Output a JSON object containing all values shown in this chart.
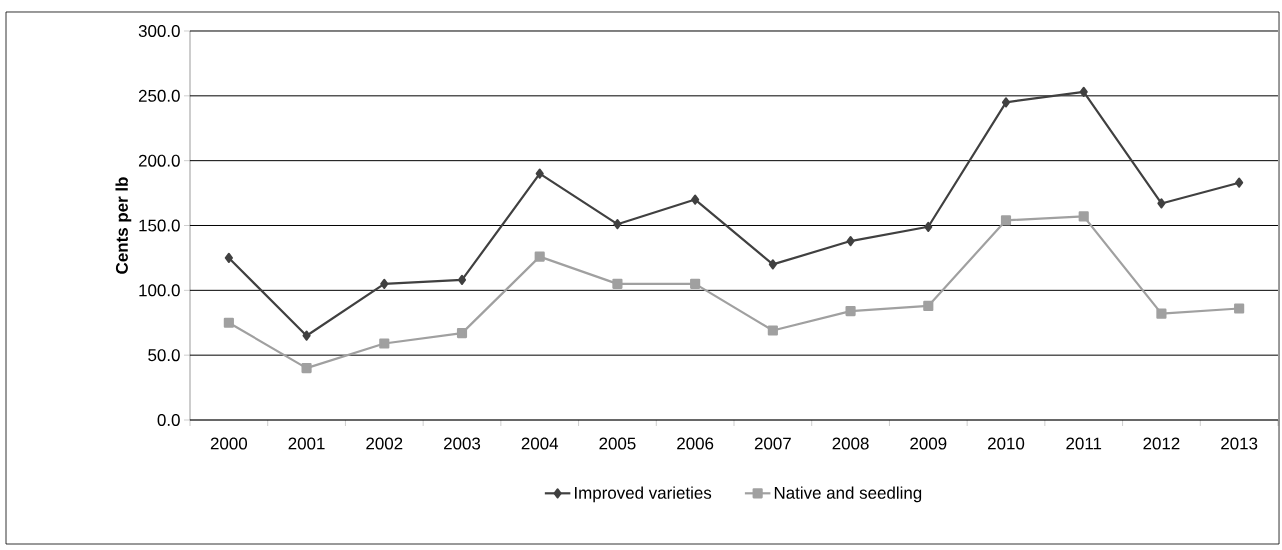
{
  "chart_data": {
    "type": "line",
    "ylabel": "Cents per lb",
    "categories": [
      "2000",
      "2001",
      "2002",
      "2003",
      "2004",
      "2005",
      "2006",
      "2007",
      "2008",
      "2009",
      "2010",
      "2011",
      "2012",
      "2013"
    ],
    "series": [
      {
        "name": "Improved varieties",
        "color": "#404040",
        "marker": "diamond",
        "values": [
          125,
          65,
          105,
          108,
          190,
          151,
          170,
          120,
          138,
          149,
          245,
          253,
          167,
          183
        ]
      },
      {
        "name": "Native and seedling",
        "color": "#a0a0a0",
        "marker": "square",
        "values": [
          75,
          40,
          59,
          67,
          126,
          105,
          105,
          69,
          84,
          88,
          154,
          157,
          82,
          86
        ]
      }
    ],
    "ylim": [
      0,
      300
    ],
    "yticks": [
      {
        "value": 0,
        "label": "0.0"
      },
      {
        "value": 50,
        "label": "50.0"
      },
      {
        "value": 100,
        "label": "100.0"
      },
      {
        "value": 150,
        "label": "150.0"
      },
      {
        "value": 200,
        "label": "200.0"
      },
      {
        "value": 250,
        "label": "250.0"
      },
      {
        "value": 300,
        "label": "300.0"
      }
    ],
    "grid": "y",
    "legend": "bottom",
    "line_style": "solid"
  }
}
